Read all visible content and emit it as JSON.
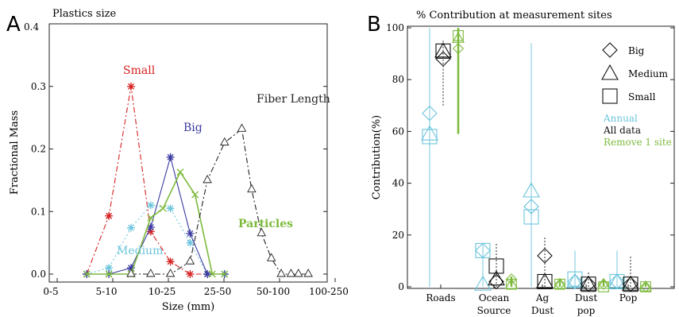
{
  "chart_data": [
    {
      "type": "line",
      "panel_label": "A",
      "title": "Plastics size",
      "xlabel": "Size (mm)",
      "ylabel": "Fractional Mass",
      "ylim": [
        0,
        0.4
      ],
      "xlim": [
        0,
        10
      ],
      "x_ticks": [
        "0-5",
        "5-10",
        "10-25",
        "25-50",
        "50-100",
        "100-250"
      ],
      "y_ticks": [
        "0.0",
        "0.1",
        "0.2",
        "0.3",
        "0.4"
      ],
      "series": [
        {
          "name": "Small",
          "color": "#d62020",
          "marker": "asterisk",
          "dash": "7,3,2,3",
          "x": [
            1.2,
            2.1,
            3.0,
            3.8,
            4.6,
            5.4,
            6.1
          ],
          "y": [
            0.0,
            0.093,
            0.3,
            0.068,
            0.02,
            0.0,
            0.0
          ]
        },
        {
          "name": "Medium",
          "color": "#6bc4dc",
          "marker": "asterisk",
          "dash": "2,3",
          "x": [
            1.2,
            2.1,
            3.0,
            3.8,
            4.6,
            5.4,
            6.1,
            6.8
          ],
          "y": [
            0.0,
            0.01,
            0.074,
            0.11,
            0.105,
            0.05,
            0.0,
            0.0
          ]
        },
        {
          "name": "Big",
          "color": "#3a3aa0",
          "marker": "asterisk",
          "dash": "",
          "x": [
            1.2,
            2.1,
            3.0,
            3.8,
            4.6,
            5.4,
            6.1,
            6.8
          ],
          "y": [
            0.0,
            0.0,
            0.01,
            0.075,
            0.187,
            0.065,
            0.0,
            0.0
          ]
        },
        {
          "name": "Particles",
          "color": "#7dba3c",
          "marker": "cross",
          "dash": "",
          "x": [
            1.2,
            2.1,
            3.0,
            3.8,
            4.3,
            5.0,
            5.6,
            6.3,
            6.8
          ],
          "y": [
            0.0,
            0.0,
            0.0,
            0.09,
            0.105,
            0.163,
            0.127,
            0.0,
            0.0
          ]
        },
        {
          "name": "Fiber Length",
          "color": "#222222",
          "marker": "triangle",
          "dash": "7,3,2,3",
          "x": [
            3.0,
            3.8,
            4.6,
            5.4,
            6.1,
            6.8,
            7.5,
            7.9,
            8.3,
            8.7,
            9.1,
            9.5,
            9.8,
            10.2
          ],
          "y": [
            0.0,
            0.0,
            0.0,
            0.02,
            0.15,
            0.21,
            0.232,
            0.135,
            0.065,
            0.025,
            0.0,
            0.0,
            0.0,
            0.0
          ]
        }
      ]
    },
    {
      "type": "scatter",
      "panel_label": "B",
      "title": "% Contribution at measurement sites",
      "xlabel": "",
      "ylabel": "Contribution(%)",
      "ylim": [
        0,
        100
      ],
      "y_ticks": [
        "0",
        "20",
        "40",
        "60",
        "80",
        "100"
      ],
      "categories": [
        "Roads",
        "Ocean Source",
        "Ag Dust",
        "Dust pop",
        "Pop"
      ],
      "marker_legend": [
        "Big",
        "Medium",
        "Small"
      ],
      "color_legend": [
        {
          "label": "Annual",
          "color": "#6bc4dc"
        },
        {
          "label": "All data",
          "color": "#111111"
        },
        {
          "label": "Remove 1 site",
          "color": "#7dba3c"
        }
      ],
      "points": [
        {
          "category": "Roads",
          "group": "Annual",
          "big": 67,
          "medium": 59,
          "small": 58,
          "range": [
            0,
            100
          ]
        },
        {
          "category": "Roads",
          "group": "All data",
          "big": 88,
          "medium": 91,
          "small": 91,
          "range": [
            70,
            95
          ]
        },
        {
          "category": "Roads",
          "group": "Remove 1 site",
          "big": 92,
          "medium": 96,
          "small": 97,
          "range": [
            59,
            100
          ]
        },
        {
          "category": "Ocean Source",
          "group": "Annual",
          "big": 14,
          "medium": 1,
          "small": 14,
          "range": [
            0,
            17
          ]
        },
        {
          "category": "Ocean Source",
          "group": "All data",
          "big": 2,
          "medium": 3,
          "small": 8,
          "range": [
            0,
            17
          ]
        },
        {
          "category": "Ocean Source",
          "group": "Remove 1 site",
          "big": 3,
          "medium": 1,
          "small": 1,
          "range": [
            0,
            4
          ]
        },
        {
          "category": "Ag Dust",
          "group": "Annual",
          "big": 31,
          "medium": 37,
          "small": 27,
          "range": [
            0,
            94
          ]
        },
        {
          "category": "Ag Dust",
          "group": "All data",
          "big": 12,
          "medium": 2,
          "small": 2,
          "range": [
            0,
            19
          ]
        },
        {
          "category": "Ag Dust",
          "group": "Remove 1 site",
          "big": 1,
          "medium": 1,
          "small": 1,
          "range": [
            0,
            3
          ]
        },
        {
          "category": "Dust pop",
          "group": "Annual",
          "big": 2,
          "medium": 2,
          "small": 3,
          "range": [
            0,
            14
          ]
        },
        {
          "category": "Dust pop",
          "group": "All data",
          "big": 1,
          "medium": 1,
          "small": 1,
          "range": [
            0,
            6
          ]
        },
        {
          "category": "Dust pop",
          "group": "Remove 1 site",
          "big": 1,
          "medium": 1,
          "small": 0,
          "range": [
            0,
            3
          ]
        },
        {
          "category": "Pop",
          "group": "Annual",
          "big": 2,
          "medium": 2,
          "small": 2,
          "range": [
            0,
            14
          ]
        },
        {
          "category": "Pop",
          "group": "All data",
          "big": 1,
          "medium": 1,
          "small": 1,
          "range": [
            0,
            12
          ]
        },
        {
          "category": "Pop",
          "group": "Remove 1 site",
          "big": 0,
          "medium": 0,
          "small": 0,
          "range": [
            0,
            2
          ]
        }
      ]
    }
  ]
}
